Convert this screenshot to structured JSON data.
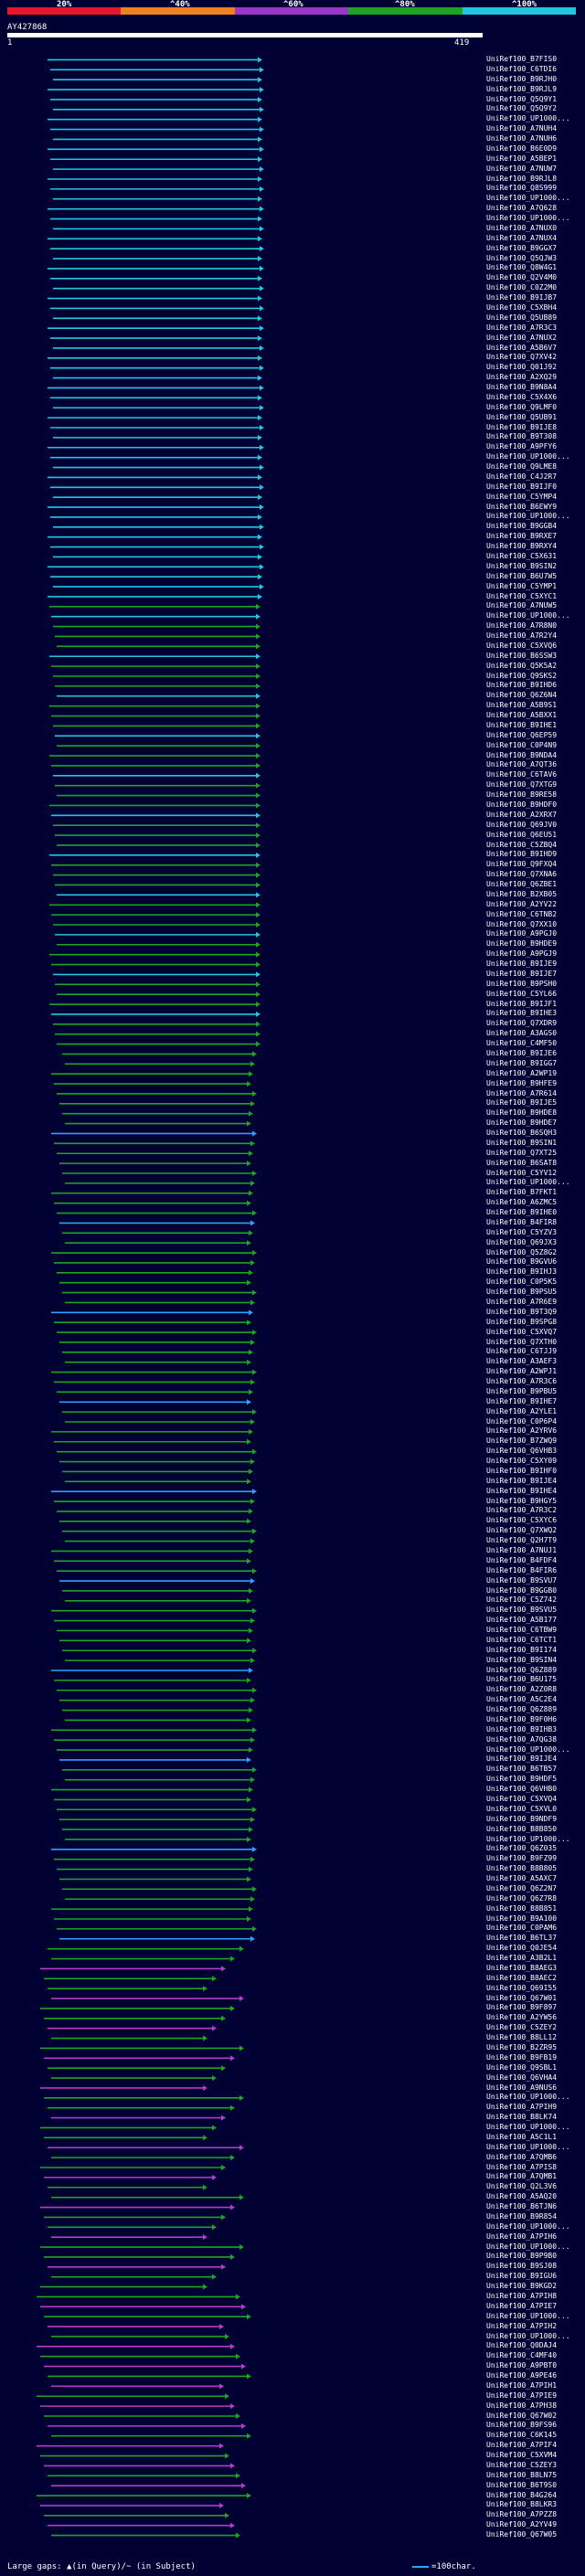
{
  "legend": {
    "labels": [
      "20%",
      "^40%",
      "^60%",
      "^80%",
      "^100%"
    ],
    "colors": [
      "#e8152b",
      "#f08020",
      "#9a37c8",
      "#1ea424",
      "#22c6e0"
    ]
  },
  "query": {
    "id": "AY427868",
    "start": "1",
    "end": "419"
  },
  "footer": {
    "gaps_label": "Large gaps: ▲(in Query)/~ (in Subject)",
    "scale_label": "=100char."
  },
  "hit_colors": {
    "cyan": "#22c6e0",
    "green": "#1ea424",
    "purple": "#b43cc8",
    "blue": "#2aa2ff"
  },
  "hits": [
    "UniRef100_B7FIS0",
    "UniRef100_C6TDI6",
    "UniRef100_B9RJH0",
    "UniRef100_B9RJL9",
    "UniRef100_Q5Q9Y1",
    "UniRef100_Q5Q9Y2",
    "UniRef100_UP1000...",
    "UniRef100_A7NUH4",
    "UniRef100_A7NUH6",
    "UniRef100_B6E0D9",
    "UniRef100_A5BEP1",
    "UniRef100_A7NUW7",
    "UniRef100_B9RJL8",
    "UniRef100_Q8S999",
    "UniRef100_UP1000...",
    "UniRef100_A7Q628",
    "UniRef100_UP1000...",
    "UniRef100_A7NUX0",
    "UniRef100_A7NUX4",
    "UniRef100_B9GGX7",
    "UniRef100_Q5QJW3",
    "UniRef100_Q8W4G1",
    "UniRef100_Q2V4M0",
    "UniRef100_C0Z2M0",
    "UniRef100_B9IJB7",
    "UniRef100_C5XBH4",
    "UniRef100_Q5UB89",
    "UniRef100_A7R3C3",
    "UniRef100_A7NUX2",
    "UniRef100_A5B6V7",
    "UniRef100_Q7XV42",
    "UniRef100_Q01J92",
    "UniRef100_A2XQ29",
    "UniRef100_B9N8A4",
    "UniRef100_C5X4X6",
    "UniRef100_Q9LMF0",
    "UniRef100_Q5UB91",
    "UniRef100_B9IJE8",
    "UniRef100_B9T308",
    "UniRef100_A9PFY6",
    "UniRef100_UP1000...",
    "UniRef100_Q9LME8",
    "UniRef100_C4J2R7",
    "UniRef100_B9IJF0",
    "UniRef100_C5YMP4",
    "UniRef100_B6EWY9",
    "UniRef100_UP1000...",
    "UniRef100_B9GGB4",
    "UniRef100_B9RXE7",
    "UniRef100_B9RXY4",
    "UniRef100_C5X631",
    "UniRef100_B9SIN2",
    "UniRef100_B6U7W5",
    "UniRef100_C5YMP1",
    "UniRef100_C5XYC1",
    "UniRef100_A7NUW5",
    "UniRef100_UP1000...",
    "UniRef100_A7R8N0",
    "UniRef100_A7R2Y4",
    "UniRef100_C5XVQ6",
    "UniRef100_B6SSW3",
    "UniRef100_Q5K5A2",
    "UniRef100_Q9SKS2",
    "UniRef100_B9IHD6",
    "UniRef100_Q6Z6N4",
    "UniRef100_A5B9S1",
    "UniRef100_A5BXX1",
    "UniRef100_B9IHE1",
    "UniRef100_Q6EP59",
    "UniRef100_C0P4N9",
    "UniRef100_B9NDA4",
    "UniRef100_A7QT36",
    "UniRef100_C6TAV6",
    "UniRef100_Q7XTG9",
    "UniRef100_B9RE58",
    "UniRef100_B9HDF0",
    "UniRef100_A2XRX7",
    "UniRef100_Q69JV0",
    "UniRef100_Q6EU51",
    "UniRef100_C5ZBQ4",
    "UniRef100_B9IHD9",
    "UniRef100_Q9FXQ4",
    "UniRef100_Q7XNA6",
    "UniRef100_Q6ZBE1",
    "UniRef100_B2XB05",
    "UniRef100_A2YV22",
    "UniRef100_C6TNB2",
    "UniRef100_Q7XX10",
    "UniRef100_A9PGJ0",
    "UniRef100_B9HDE9",
    "UniRef100_A9PGJ9",
    "UniRef100_B9IJE9",
    "UniRef100_B9IJE7",
    "UniRef100_B9PSH0",
    "UniRef100_C5YL66",
    "UniRef100_B9IJF1",
    "UniRef100_B9IHE3",
    "UniRef100_Q7XDR9",
    "UniRef100_A3AGS0",
    "UniRef100_C4MF50",
    "UniRef100_B9IJE6",
    "UniRef100_B9IGG7",
    "UniRef100_A2WP19",
    "UniRef100_B9HFE9",
    "UniRef100_A7R614",
    "UniRef100_B9IJE5",
    "UniRef100_B9HDE8",
    "UniRef100_B9HDE7",
    "UniRef100_B6SQH3",
    "UniRef100_B9SIN1",
    "UniRef100_Q7XT25",
    "UniRef100_B6SAT8",
    "UniRef100_C5YV12",
    "UniRef100_UP1000...",
    "UniRef100_B7FKT1",
    "UniRef100_A6ZMC5",
    "UniRef100_B9IHE0",
    "UniRef100_B4FIR8",
    "UniRef100_C5YZV3",
    "UniRef100_Q69JX3",
    "UniRef100_Q5Z8G2",
    "UniRef100_B9GVU6",
    "UniRef100_B9IHJ3",
    "UniRef100_C0P5K5",
    "UniRef100_B9PSU5",
    "UniRef100_A7R6E9",
    "UniRef100_B9T3Q9",
    "UniRef100_B9SPG8",
    "UniRef100_C5XVQ7",
    "UniRef100_Q7XTH0",
    "UniRef100_C6TJJ9",
    "UniRef100_A3AEF3",
    "UniRef100_A2WPJ1",
    "UniRef100_A7R3C6",
    "UniRef100_B9PBU5",
    "UniRef100_B9IHE7",
    "UniRef100_A2YLE1",
    "UniRef100_C0P6P4",
    "UniRef100_A2YRV6",
    "UniRef100_B7ZWQ9",
    "UniRef100_Q6VHB3",
    "UniRef100_C5XY09",
    "UniRef100_B9IHF0",
    "UniRef100_B9IJE4",
    "UniRef100_B9IHE4",
    "UniRef100_B9HGY5",
    "UniRef100_A7R3C2",
    "UniRef100_C5XYC6",
    "UniRef100_Q7XWQ2",
    "UniRef100_Q2H7T9",
    "UniRef100_A7NUJ1",
    "UniRef100_B4FDF4",
    "UniRef100_B4FIR6",
    "UniRef100_B9SVU7",
    "UniRef100_B9GGB0",
    "UniRef100_C5Z742",
    "UniRef100_B9SVU5",
    "UniRef100_A5B177",
    "UniRef100_C6TBW9",
    "UniRef100_C6TCT1",
    "UniRef100_B9I174",
    "UniRef100_B9SIN4",
    "UniRef100_Q6Z889",
    "UniRef100_B6U175",
    "UniRef100_A2Z0R8",
    "UniRef100_A5C2E4",
    "UniRef100_Q6Z889",
    "UniRef100_B9F0H6",
    "UniRef100_B9IHB3",
    "UniRef100_A7QG38",
    "UniRef100_UP1000...",
    "UniRef100_B9IJE4",
    "UniRef100_B6TB57",
    "UniRef100_B9HDF5",
    "UniRef100_Q6VHB0",
    "UniRef100_C5XVQ4",
    "UniRef100_C5XVL0",
    "UniRef100_B9NDF9",
    "UniRef100_B8B850",
    "UniRef100_UP1000...",
    "UniRef100_Q6Z035",
    "UniRef100_B9FZ99",
    "UniRef100_B8B805",
    "UniRef100_A5AXC7",
    "UniRef100_Q6Z2N7",
    "UniRef100_Q6Z7R8",
    "UniRef100_B8B851",
    "UniRef100_B9A100",
    "UniRef100_C0PAM6",
    "UniRef100_B6TL37",
    "UniRef100_Q0JE54",
    "UniRef100_A3B2L1",
    "UniRef100_B8AEG3",
    "UniRef100_B8AEC2",
    "UniRef100_Q69I55",
    "UniRef100_Q67W01",
    "UniRef100_B9F897",
    "UniRef100_A2YW56",
    "UniRef100_C5ZEY2",
    "UniRef100_B8LL12",
    "UniRef100_B2ZR95",
    "UniRef100_B9FB19",
    "UniRef100_Q9SBL1",
    "UniRef100_Q6VHA4",
    "UniRef100_A9NUS6",
    "UniRef100_UP1000...",
    "UniRef100_A7PIH9",
    "UniRef100_B8LK74",
    "UniRef100_UP1000...",
    "UniRef100_A5C1L1",
    "UniRef100_UP1000...",
    "UniRef100_A7QMB6",
    "UniRef100_A7PIS8",
    "UniRef100_A7QMB1",
    "UniRef100_Q2L3V6",
    "UniRef100_A5AQ20",
    "UniRef100_B6TJN6",
    "UniRef100_B9R854",
    "UniRef100_UP1000...",
    "UniRef100_A7PIH6",
    "UniRef100_UP1000...",
    "UniRef100_B9P9B0",
    "UniRef100_B9SJ08",
    "UniRef100_B9IGU6",
    "UniRef100_B9KGD2",
    "UniRef100_A7PIH8",
    "UniRef100_A7PIE7",
    "UniRef100_UP1000...",
    "UniRef100_A7PIH2",
    "UniRef100_UP1000...",
    "UniRef100_Q0DAJ4",
    "UniRef100_C4MF40",
    "UniRef100_A9PBT0",
    "UniRef100_A9PE46",
    "UniRef100_A7PIH1",
    "UniRef100_A7PIE9",
    "UniRef100_A7PH38",
    "UniRef100_Q67W02",
    "UniRef100_B9FS96",
    "UniRef100_C6K145",
    "UniRef100_A7PIF4",
    "UniRef100_C5XVM4",
    "UniRef100_C5ZEY3",
    "UniRef100_B8LN75",
    "UniRef100_B6T9S0",
    "UniRef100_B4G264",
    "UniRef100_B8LKR3",
    "UniRef100_A7PZZ8",
    "UniRef100_A2YV49",
    "UniRef100_Q67W05"
  ]
}
